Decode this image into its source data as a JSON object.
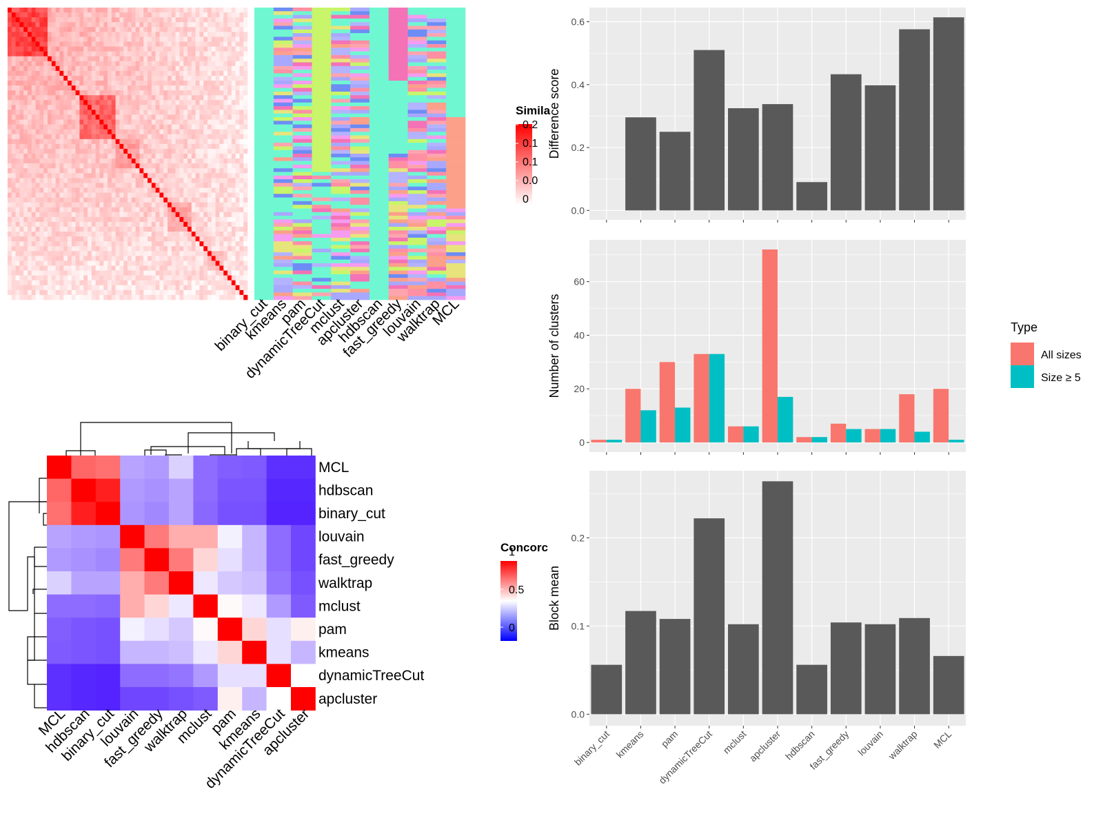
{
  "chart_data": [
    {
      "id": "similarity_heatmap",
      "type": "heatmap",
      "legend_title": "Simila",
      "legend_ticks": [
        "0.2",
        "0.1",
        "0.1",
        "0.0",
        "0"
      ],
      "colors": {
        "low": "#ffffff",
        "high": "#ff0000"
      }
    },
    {
      "id": "cluster_membership",
      "type": "heatmap",
      "columns": [
        "binary_cut",
        "kmeans",
        "pam",
        "dynamicTreeCut",
        "mclust",
        "apcluster",
        "hdbscan",
        "fast_greedy",
        "louvain",
        "walktrap",
        "MCL"
      ]
    },
    {
      "id": "concordance_heatmap",
      "type": "heatmap",
      "rows": [
        "MCL",
        "hdbscan",
        "binary_cut",
        "louvain",
        "fast_greedy",
        "walktrap",
        "mclust",
        "pam",
        "kmeans",
        "dynamicTreeCut",
        "apcluster"
      ],
      "columns": [
        "MCL",
        "hdbscan",
        "binary_cut",
        "louvain",
        "fast_greedy",
        "walktrap",
        "mclust",
        "pam",
        "kmeans",
        "dynamicTreeCut",
        "apcluster"
      ],
      "values": [
        [
          1.0,
          0.8,
          0.78,
          0.3,
          0.28,
          0.4,
          0.18,
          0.15,
          0.14,
          0.05,
          0.05
        ],
        [
          0.8,
          1.0,
          0.94,
          0.28,
          0.26,
          0.3,
          0.18,
          0.13,
          0.13,
          0.03,
          0.03
        ],
        [
          0.78,
          0.94,
          1.0,
          0.27,
          0.24,
          0.3,
          0.17,
          0.12,
          0.12,
          0.02,
          0.02
        ],
        [
          0.3,
          0.28,
          0.27,
          1.0,
          0.76,
          0.66,
          0.66,
          0.47,
          0.34,
          0.18,
          0.1
        ],
        [
          0.28,
          0.26,
          0.24,
          0.76,
          1.0,
          0.76,
          0.58,
          0.43,
          0.34,
          0.18,
          0.1
        ],
        [
          0.4,
          0.3,
          0.3,
          0.66,
          0.76,
          1.0,
          0.45,
          0.38,
          0.36,
          0.2,
          0.12
        ],
        [
          0.18,
          0.18,
          0.17,
          0.66,
          0.58,
          0.45,
          1.0,
          0.51,
          0.45,
          0.28,
          0.14
        ],
        [
          0.15,
          0.13,
          0.12,
          0.47,
          0.43,
          0.38,
          0.51,
          1.0,
          0.58,
          0.43,
          0.53
        ],
        [
          0.14,
          0.13,
          0.12,
          0.34,
          0.34,
          0.36,
          0.45,
          0.58,
          1.0,
          0.43,
          0.34
        ],
        [
          0.05,
          0.03,
          0.02,
          0.18,
          0.18,
          0.2,
          0.28,
          0.43,
          0.43,
          1.0,
          0.5
        ],
        [
          0.05,
          0.03,
          0.02,
          0.1,
          0.1,
          0.12,
          0.14,
          0.53,
          0.34,
          0.5,
          1.0
        ]
      ],
      "legend_title": "Concorc",
      "legend_ticks": [
        "1",
        "0.5",
        "0"
      ],
      "colors": {
        "low": "#0000ff",
        "mid": "#ffffff",
        "high": "#ff0000"
      }
    },
    {
      "id": "difference_score",
      "type": "bar",
      "categories": [
        "binary_cut",
        "kmeans",
        "pam",
        "dynamicTreeCut",
        "mclust",
        "apcluster",
        "hdbscan",
        "fast_greedy",
        "louvain",
        "walktrap",
        "MCL"
      ],
      "values": [
        0,
        0.296,
        0.25,
        0.51,
        0.325,
        0.338,
        0.09,
        0.433,
        0.398,
        0.576,
        0.614
      ],
      "ylabel": "Difference score",
      "ylim": [
        -0.03,
        0.645
      ],
      "yticks": [
        "0.0",
        "0.2",
        "0.4",
        "0.6"
      ],
      "bar_color": "#595959"
    },
    {
      "id": "number_of_clusters",
      "type": "bar",
      "categories": [
        "binary_cut",
        "kmeans",
        "pam",
        "dynamicTreeCut",
        "mclust",
        "apcluster",
        "hdbscan",
        "fast_greedy",
        "louvain",
        "walktrap",
        "MCL"
      ],
      "series": [
        {
          "name": "All sizes",
          "color": "#f8766d",
          "values": [
            1,
            20,
            30,
            33,
            6,
            72,
            2,
            7,
            5,
            18,
            20
          ]
        },
        {
          "name": "Size ≥ 5",
          "color": "#00bfc4",
          "values": [
            1,
            12,
            13,
            33,
            6,
            17,
            2,
            5,
            5,
            4,
            1
          ]
        }
      ],
      "ylabel": "Number of clusters",
      "ylim": [
        -3.6,
        75.6
      ],
      "yticks": [
        "0",
        "20",
        "40",
        "60"
      ],
      "legend_title": "Type"
    },
    {
      "id": "block_mean",
      "type": "bar",
      "categories": [
        "binary_cut",
        "kmeans",
        "pam",
        "dynamicTreeCut",
        "mclust",
        "apcluster",
        "hdbscan",
        "fast_greedy",
        "louvain",
        "walktrap",
        "MCL"
      ],
      "values": [
        0.056,
        0.117,
        0.108,
        0.222,
        0.102,
        0.264,
        0.056,
        0.104,
        0.102,
        0.109,
        0.066
      ],
      "ylabel": "Block mean",
      "ylim": [
        -0.013,
        0.276
      ],
      "yticks": [
        "0.0",
        "0.1",
        "0.2"
      ],
      "bar_color": "#595959"
    }
  ]
}
